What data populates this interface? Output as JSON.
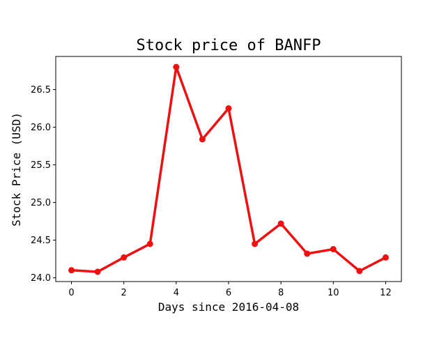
{
  "chart_data": {
    "type": "line",
    "title": "Stock price of BANFP",
    "xlabel": "Days since 2016-04-08",
    "ylabel": "Stock Price (USD)",
    "x": [
      0,
      1,
      2,
      3,
      4,
      5,
      6,
      7,
      8,
      9,
      10,
      11,
      12
    ],
    "series": [
      {
        "values": [
          24.1,
          24.08,
          24.27,
          24.45,
          26.8,
          25.84,
          26.25,
          24.45,
          24.72,
          24.32,
          24.38,
          24.09,
          24.27
        ],
        "color": "#ee1111"
      }
    ],
    "xticks": [
      0,
      2,
      4,
      6,
      8,
      10,
      12
    ],
    "xtick_labels": [
      "0",
      "2",
      "4",
      "6",
      "8",
      "10",
      "12"
    ],
    "yticks": [
      24.0,
      24.5,
      25.0,
      25.5,
      26.0,
      26.5
    ],
    "ytick_labels": [
      "24.0",
      "24.5",
      "25.0",
      "25.5",
      "26.0",
      "26.5"
    ],
    "xlim": [
      -0.6,
      12.6
    ],
    "ylim": [
      23.95,
      26.94
    ],
    "grid": false,
    "legend": false
  }
}
